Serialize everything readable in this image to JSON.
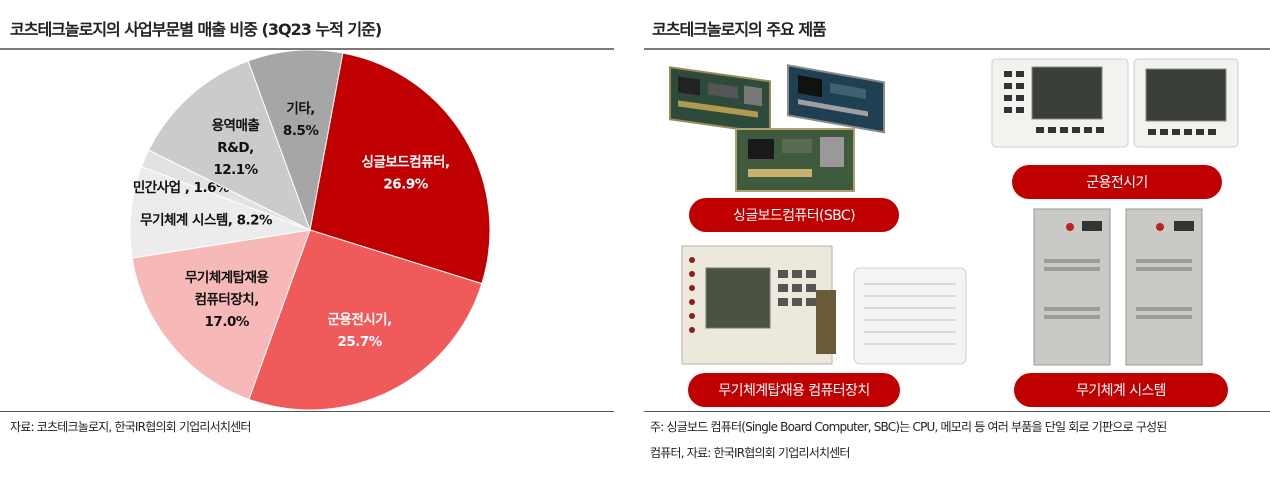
{
  "left": {
    "title": "코츠테크놀로지의 사업부문별 매출 비중 (3Q23 누적 기준)",
    "source": "자료: 코츠테크놀로지, 한국IR협의회 기업리서치센터"
  },
  "right": {
    "title": "코츠테크놀로지의 주요 제품",
    "products": [
      {
        "label": "싱글보드컴퓨터(SBC)"
      },
      {
        "label": "군용전시기"
      },
      {
        "label": "무기체계탑재용 컴퓨터장치"
      },
      {
        "label": "무기체계 시스템"
      }
    ],
    "note_line1": "주: 싱글보드 컴퓨터(Single Board Computer, SBC)는 CPU, 메모리 등 여러 부품을 단일 회로 기판으로 구성된",
    "note_line2": "컴퓨터, 자료: 한국IR협의회 기업리서치센터"
  },
  "chart_data": {
    "type": "pie",
    "title": "코츠테크놀로지의 사업부문별 매출 비중 (3Q23 누적 기준)",
    "unit": "%",
    "slices": [
      {
        "lines": [
          "싱글보드컴퓨터,",
          "26.9%"
        ],
        "value": 26.9,
        "color": "#c00000",
        "text_color": "#ffffff"
      },
      {
        "lines": [
          "군용전시기,",
          "25.7%"
        ],
        "value": 25.7,
        "color": "#f05a5a",
        "text_color": "#ffffff"
      },
      {
        "lines": [
          "무기체계탑재용",
          "컴퓨터장치,",
          "17.0%"
        ],
        "value": 17.0,
        "color": "#f7b8b8",
        "text_color": "#111111"
      },
      {
        "lines": [
          "무기체계 시스템, 8.2%"
        ],
        "value": 8.2,
        "color": "#ececec",
        "text_color": "#111111"
      },
      {
        "lines": [
          "민간사업 , 1.6%"
        ],
        "value": 1.6,
        "color": "#e2e2e2",
        "text_color": "#111111"
      },
      {
        "lines": [
          "용역매출",
          "R&D,",
          "12.1%"
        ],
        "value": 12.1,
        "color": "#cbcbcb",
        "text_color": "#111111"
      },
      {
        "lines": [
          "기타,",
          "8.5%"
        ],
        "value": 8.5,
        "color": "#a6a6a6",
        "text_color": "#111111"
      }
    ]
  }
}
